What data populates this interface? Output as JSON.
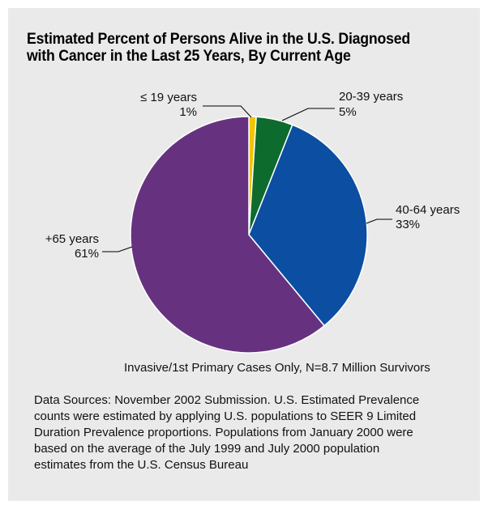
{
  "title_lines": [
    "Estimated Percent of Persons Alive in the U.S. Diagnosed",
    "with Cancer in the Last 25 Years, By Current Age"
  ],
  "note": "Invasive/1st Primary Cases Only, N=8.7 Million Survivors",
  "sources_lines": [
    "Data Sources: November 2002 Submission. U.S. Estimated Prevalence",
    "counts were estimated by applying U.S. populations to SEER 9 Limited",
    "Duration Prevalence proportions. Populations from January 2000 were",
    "based on the average of the July 1999 and July 2000 population",
    "estimates from the U.S. Census Bureau"
  ],
  "colors": {
    "panel_background": "#eaeaea",
    "slice_19": "#f2c500",
    "slice_20_39": "#0d6b2e",
    "slice_40_64": "#0b4ea2",
    "slice_65": "#663280"
  },
  "chart_data": {
    "type": "pie",
    "title": "Estimated Percent of Persons Alive in the U.S. Diagnosed with Cancer in the Last 25 Years, By Current Age",
    "start": "top",
    "direction": "clockwise",
    "slices": [
      {
        "label": "≤ 19 years",
        "value_label": "1%",
        "value": 1,
        "color": "#f2c500"
      },
      {
        "label": "20-39 years",
        "value_label": "5%",
        "value": 5,
        "color": "#0d6b2e"
      },
      {
        "label": "40-64  years",
        "value_label": "33%",
        "value": 33,
        "color": "#0b4ea2"
      },
      {
        "label": "+65 years",
        "value_label": "61%",
        "value": 61,
        "color": "#663280"
      }
    ]
  }
}
